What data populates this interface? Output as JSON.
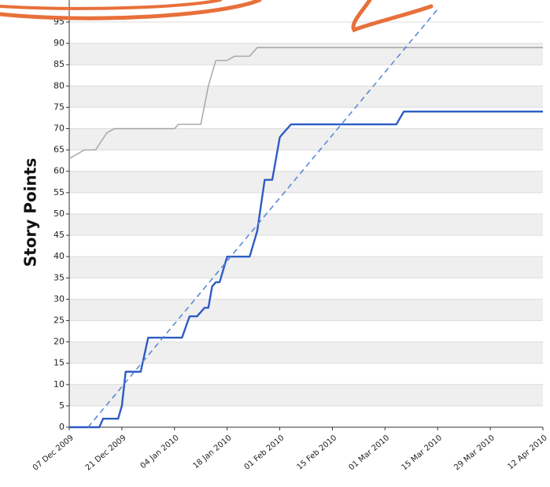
{
  "chart_data": {
    "type": "line",
    "y_label": "Story Points",
    "xlim": [
      "2009-12-07",
      "2010-04-12"
    ],
    "xticks": [
      {
        "value": "2009-12-07",
        "label": "07 Dec 2009"
      },
      {
        "value": "2009-12-21",
        "label": "21 Dec 2009"
      },
      {
        "value": "2010-01-04",
        "label": "04 Jan 2010"
      },
      {
        "value": "2010-01-18",
        "label": "18 Jan 2010"
      },
      {
        "value": "2010-02-01",
        "label": "01 Feb 2010"
      },
      {
        "value": "2010-02-15",
        "label": "15 Feb 2010"
      },
      {
        "value": "2010-03-01",
        "label": "01 Mar 2010"
      },
      {
        "value": "2010-03-15",
        "label": "15 Mar 2010"
      },
      {
        "value": "2010-03-29",
        "label": "29 Mar 2010"
      },
      {
        "value": "2010-04-12",
        "label": "12 Apr 2010"
      }
    ],
    "ylim": [
      0,
      95
    ],
    "yticks": [
      0,
      5,
      10,
      15,
      20,
      25,
      30,
      35,
      40,
      45,
      50,
      55,
      60,
      65,
      70,
      75,
      80,
      85,
      90,
      95
    ],
    "grid": true,
    "series": [
      {
        "color": "#a3a3a3",
        "style": "solid",
        "x": [
          "2009-12-07",
          "2009-12-09",
          "2009-12-11",
          "2009-12-14",
          "2009-12-17",
          "2009-12-19",
          "2010-01-04",
          "2010-01-05",
          "2010-01-11",
          "2010-01-13",
          "2010-01-15",
          "2010-01-18",
          "2010-01-20",
          "2010-01-24",
          "2010-01-26",
          "2010-04-12"
        ],
        "values": [
          63,
          64,
          65,
          65,
          69,
          70,
          70,
          71,
          71,
          80,
          86,
          86,
          87,
          87,
          89,
          89
        ]
      },
      {
        "color": "#2c5cc5",
        "style": "solid",
        "x": [
          "2009-12-07",
          "2009-12-15",
          "2009-12-16",
          "2009-12-20",
          "2009-12-21",
          "2009-12-22",
          "2009-12-26",
          "2009-12-28",
          "2010-01-06",
          "2010-01-08",
          "2010-01-10",
          "2010-01-12",
          "2010-01-13",
          "2010-01-14",
          "2010-01-15",
          "2010-01-16",
          "2010-01-18",
          "2010-01-24",
          "2010-01-26",
          "2010-01-28",
          "2010-01-30",
          "2010-02-01",
          "2010-02-02",
          "2010-02-04",
          "2010-03-04",
          "2010-03-06",
          "2010-04-12"
        ],
        "values": [
          0,
          0,
          2,
          2,
          5,
          13,
          13,
          21,
          21,
          26,
          26,
          28,
          28,
          33,
          34,
          34,
          40,
          40,
          46,
          58,
          58,
          68,
          69,
          71,
          71,
          74,
          74
        ]
      },
      {
        "color": "#5b8ad4",
        "style": "dashed",
        "x": [
          "2009-12-12",
          "2010-03-15"
        ],
        "values": [
          0,
          98
        ]
      }
    ]
  }
}
